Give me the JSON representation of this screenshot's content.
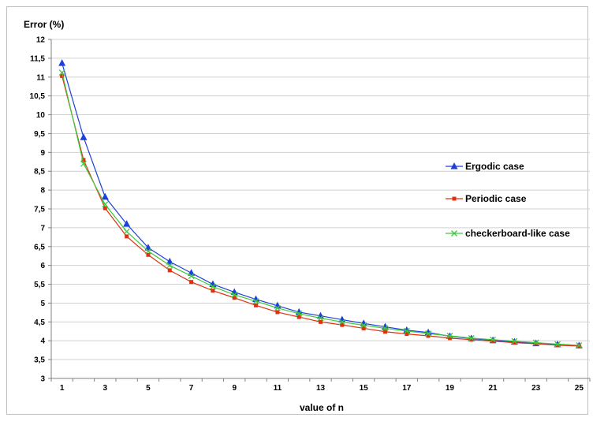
{
  "chart_data": {
    "type": "line",
    "title": "",
    "ylabel": "Error (%)",
    "xlabel": "value of n",
    "x": [
      1,
      2,
      3,
      4,
      5,
      6,
      7,
      8,
      9,
      10,
      11,
      12,
      13,
      14,
      15,
      16,
      17,
      18,
      19,
      20,
      21,
      22,
      23,
      24,
      25
    ],
    "x_tick_labels": [
      "1",
      "3",
      "5",
      "7",
      "9",
      "11",
      "13",
      "15",
      "17",
      "19",
      "21",
      "23",
      "25"
    ],
    "y_tick_labels": [
      "3",
      "3,5",
      "4",
      "4,5",
      "5",
      "5,5",
      "6",
      "6,5",
      "7",
      "7,5",
      "8",
      "8,5",
      "9",
      "9,5",
      "10",
      "10,5",
      "11",
      "11,5",
      "12"
    ],
    "ylim": [
      3,
      12
    ],
    "xlim": [
      0.5,
      25.5
    ],
    "grid": true,
    "legend_position": "right",
    "series": [
      {
        "name": "Ergodic case",
        "color": "#1f3fd9",
        "marker": "triangle",
        "values": [
          11.37,
          9.4,
          7.82,
          7.1,
          6.47,
          6.1,
          5.8,
          5.5,
          5.29,
          5.1,
          4.93,
          4.76,
          4.66,
          4.56,
          4.46,
          4.37,
          4.28,
          4.22,
          4.12,
          4.06,
          4.01,
          3.97,
          3.93,
          3.9,
          3.87
        ]
      },
      {
        "name": "Periodic case",
        "color": "#e03010",
        "marker": "square",
        "values": [
          11.03,
          8.8,
          7.52,
          6.77,
          6.28,
          5.87,
          5.56,
          5.33,
          5.14,
          4.94,
          4.76,
          4.63,
          4.5,
          4.42,
          4.33,
          4.24,
          4.18,
          4.13,
          4.07,
          4.03,
          3.99,
          3.95,
          3.92,
          3.88,
          3.86
        ]
      },
      {
        "name": "checkerboard-like case",
        "color": "#3ec83e",
        "marker": "x",
        "values": [
          11.12,
          8.7,
          7.62,
          6.9,
          6.38,
          6.0,
          5.72,
          5.44,
          5.22,
          5.05,
          4.87,
          4.72,
          4.6,
          4.5,
          4.41,
          4.33,
          4.26,
          4.19,
          4.13,
          4.07,
          4.03,
          3.99,
          3.95,
          3.91,
          3.88
        ]
      }
    ]
  }
}
